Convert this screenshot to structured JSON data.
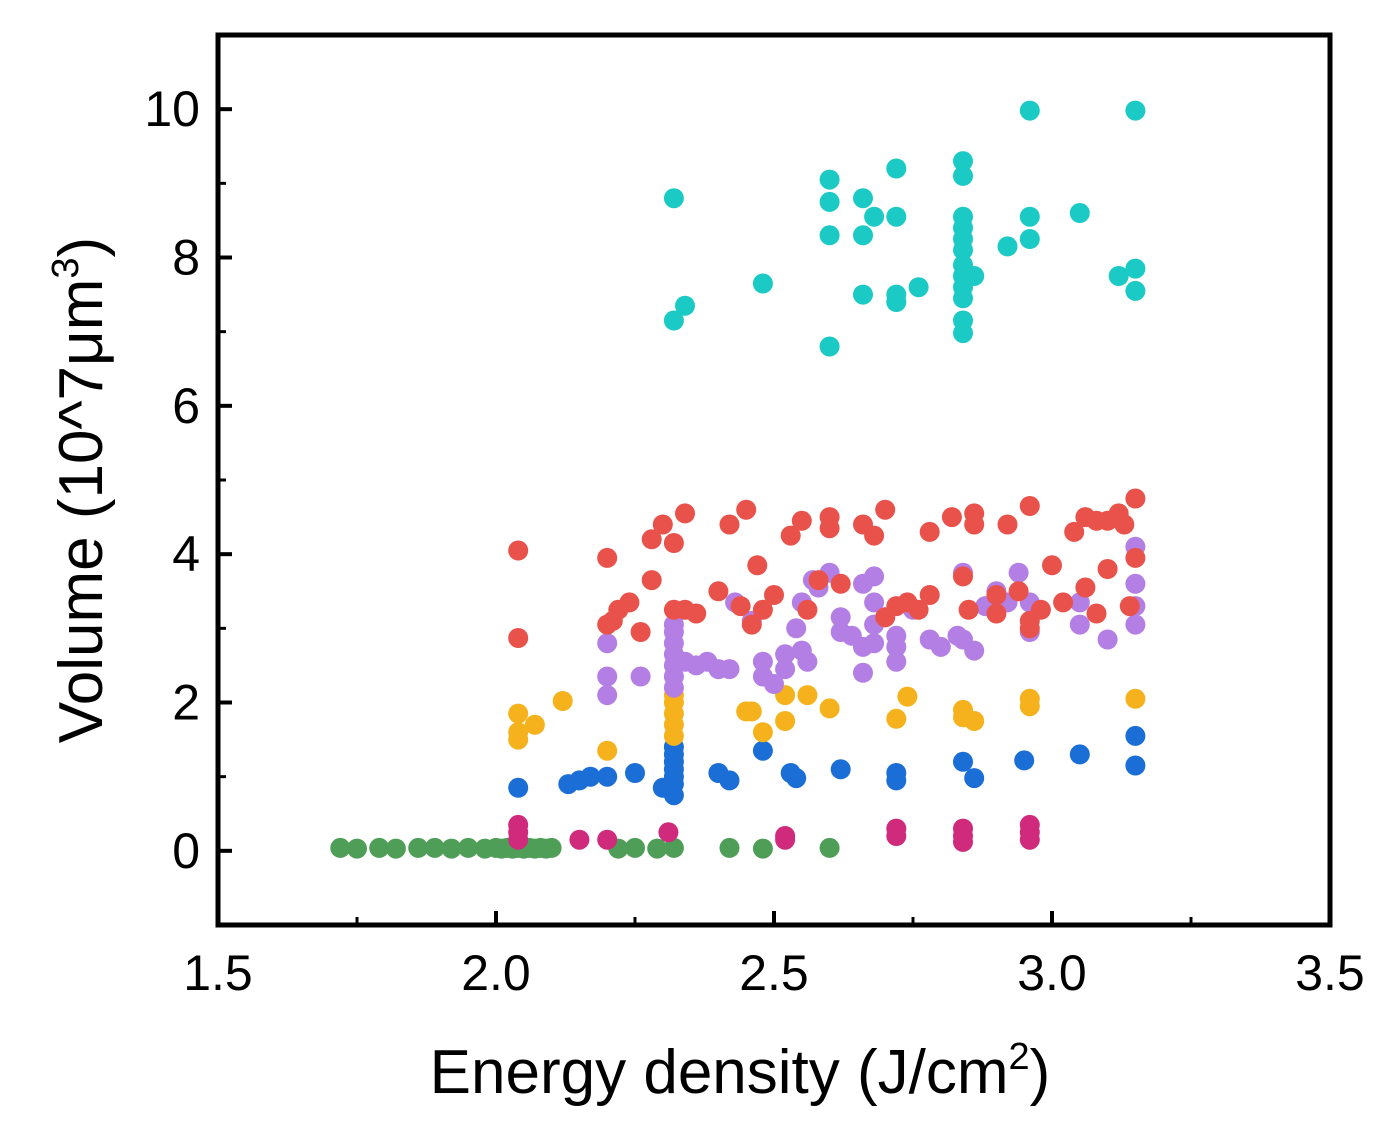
{
  "chart_data": {
    "type": "scatter",
    "title": "",
    "xlabel": {
      "main": "Energy density (J/cm",
      "sup": "2",
      "end": ")"
    },
    "ylabel": {
      "main": "Volume (10^7μm",
      "sup": "3",
      "end": ")"
    },
    "xlim": [
      1.5,
      3.5
    ],
    "ylim": [
      -1.0,
      11.0
    ],
    "xticks": [
      {
        "value": 1.5,
        "label": "1.5"
      },
      {
        "value": 2.0,
        "label": "2.0"
      },
      {
        "value": 2.5,
        "label": "2.5"
      },
      {
        "value": 3.0,
        "label": "3.0"
      },
      {
        "value": 3.5,
        "label": "3.5"
      }
    ],
    "yticks": [
      {
        "value": 0,
        "label": "0"
      },
      {
        "value": 2,
        "label": "2"
      },
      {
        "value": 4,
        "label": "4"
      },
      {
        "value": 6,
        "label": "6"
      },
      {
        "value": 8,
        "label": "8"
      },
      {
        "value": 10,
        "label": "10"
      }
    ],
    "grid": false,
    "series": [
      {
        "name": "green",
        "color": "#4e9e58",
        "points": [
          [
            1.72,
            0.04
          ],
          [
            1.75,
            0.03
          ],
          [
            1.79,
            0.04
          ],
          [
            1.82,
            0.03
          ],
          [
            1.86,
            0.04
          ],
          [
            1.89,
            0.04
          ],
          [
            1.92,
            0.03
          ],
          [
            1.95,
            0.04
          ],
          [
            1.98,
            0.03
          ],
          [
            2.0,
            0.04
          ],
          [
            2.01,
            0.03
          ],
          [
            2.02,
            0.04
          ],
          [
            2.03,
            0.03
          ],
          [
            2.04,
            0.04
          ],
          [
            2.05,
            0.03
          ],
          [
            2.06,
            0.04
          ],
          [
            2.07,
            0.03
          ],
          [
            2.08,
            0.04
          ],
          [
            2.09,
            0.03
          ],
          [
            2.1,
            0.04
          ],
          [
            2.22,
            0.03
          ],
          [
            2.25,
            0.04
          ],
          [
            2.29,
            0.03
          ],
          [
            2.32,
            0.04
          ],
          [
            2.42,
            0.04
          ],
          [
            2.48,
            0.03
          ],
          [
            2.6,
            0.04
          ]
        ]
      },
      {
        "name": "magenta",
        "color": "#cf2a7c",
        "points": [
          [
            2.04,
            0.35
          ],
          [
            2.04,
            0.25
          ],
          [
            2.04,
            0.15
          ],
          [
            2.15,
            0.15
          ],
          [
            2.2,
            0.15
          ],
          [
            2.31,
            0.25
          ],
          [
            2.52,
            0.2
          ],
          [
            2.52,
            0.15
          ],
          [
            2.72,
            0.3
          ],
          [
            2.72,
            0.2
          ],
          [
            2.84,
            0.3
          ],
          [
            2.84,
            0.2
          ],
          [
            2.84,
            0.12
          ],
          [
            2.96,
            0.35
          ],
          [
            2.96,
            0.25
          ],
          [
            2.96,
            0.15
          ]
        ]
      },
      {
        "name": "blue",
        "color": "#1a6ed6",
        "points": [
          [
            2.04,
            0.85
          ],
          [
            2.13,
            0.9
          ],
          [
            2.15,
            0.95
          ],
          [
            2.17,
            1.0
          ],
          [
            2.2,
            1.0
          ],
          [
            2.25,
            1.05
          ],
          [
            2.3,
            0.85
          ],
          [
            2.32,
            0.75
          ],
          [
            2.32,
            0.9
          ],
          [
            2.32,
            1.0
          ],
          [
            2.32,
            1.1
          ],
          [
            2.32,
            1.2
          ],
          [
            2.32,
            1.3
          ],
          [
            2.32,
            1.4
          ],
          [
            2.4,
            1.05
          ],
          [
            2.42,
            0.95
          ],
          [
            2.48,
            1.35
          ],
          [
            2.53,
            1.05
          ],
          [
            2.54,
            0.98
          ],
          [
            2.62,
            1.1
          ],
          [
            2.72,
            1.05
          ],
          [
            2.72,
            0.95
          ],
          [
            2.84,
            1.2
          ],
          [
            2.86,
            0.98
          ],
          [
            2.95,
            1.22
          ],
          [
            3.05,
            1.3
          ],
          [
            3.15,
            1.55
          ],
          [
            3.15,
            1.15
          ]
        ]
      },
      {
        "name": "orange",
        "color": "#f6b21c",
        "points": [
          [
            2.04,
            1.85
          ],
          [
            2.04,
            1.6
          ],
          [
            2.04,
            1.5
          ],
          [
            2.07,
            1.7
          ],
          [
            2.12,
            2.02
          ],
          [
            2.2,
            1.35
          ],
          [
            2.32,
            1.55
          ],
          [
            2.32,
            1.7
          ],
          [
            2.32,
            1.85
          ],
          [
            2.32,
            2.0
          ],
          [
            2.32,
            2.1
          ],
          [
            2.45,
            1.88
          ],
          [
            2.46,
            1.88
          ],
          [
            2.48,
            1.6
          ],
          [
            2.52,
            1.75
          ],
          [
            2.52,
            2.1
          ],
          [
            2.56,
            2.1
          ],
          [
            2.6,
            1.92
          ],
          [
            2.72,
            1.78
          ],
          [
            2.74,
            2.08
          ],
          [
            2.84,
            1.9
          ],
          [
            2.84,
            1.8
          ],
          [
            2.86,
            1.75
          ],
          [
            2.96,
            2.05
          ],
          [
            2.96,
            1.95
          ],
          [
            3.15,
            2.05
          ]
        ]
      },
      {
        "name": "purple",
        "color": "#b47fe4",
        "points": [
          [
            2.2,
            2.8
          ],
          [
            2.2,
            2.35
          ],
          [
            2.2,
            2.1
          ],
          [
            2.26,
            2.35
          ],
          [
            2.32,
            2.2
          ],
          [
            2.32,
            2.35
          ],
          [
            2.32,
            2.5
          ],
          [
            2.32,
            2.65
          ],
          [
            2.32,
            2.8
          ],
          [
            2.32,
            2.95
          ],
          [
            2.32,
            3.05
          ],
          [
            2.34,
            2.55
          ],
          [
            2.36,
            2.5
          ],
          [
            2.38,
            2.55
          ],
          [
            2.4,
            2.45
          ],
          [
            2.42,
            2.45
          ],
          [
            2.43,
            3.35
          ],
          [
            2.46,
            3.1
          ],
          [
            2.48,
            2.55
          ],
          [
            2.48,
            2.35
          ],
          [
            2.5,
            2.25
          ],
          [
            2.52,
            2.45
          ],
          [
            2.52,
            2.65
          ],
          [
            2.54,
            3.0
          ],
          [
            2.55,
            3.35
          ],
          [
            2.55,
            2.7
          ],
          [
            2.56,
            2.55
          ],
          [
            2.57,
            3.65
          ],
          [
            2.58,
            3.55
          ],
          [
            2.6,
            3.75
          ],
          [
            2.62,
            3.15
          ],
          [
            2.62,
            2.95
          ],
          [
            2.64,
            2.9
          ],
          [
            2.66,
            3.6
          ],
          [
            2.66,
            2.75
          ],
          [
            2.66,
            2.4
          ],
          [
            2.68,
            3.7
          ],
          [
            2.68,
            3.35
          ],
          [
            2.68,
            3.05
          ],
          [
            2.68,
            2.8
          ],
          [
            2.7,
            3.15
          ],
          [
            2.72,
            2.9
          ],
          [
            2.72,
            2.75
          ],
          [
            2.72,
            2.55
          ],
          [
            2.75,
            3.25
          ],
          [
            2.78,
            2.85
          ],
          [
            2.8,
            2.75
          ],
          [
            2.83,
            2.9
          ],
          [
            2.84,
            3.75
          ],
          [
            2.84,
            2.85
          ],
          [
            2.86,
            2.7
          ],
          [
            2.88,
            3.3
          ],
          [
            2.9,
            3.5
          ],
          [
            2.92,
            3.35
          ],
          [
            2.94,
            3.75
          ],
          [
            2.96,
            3.35
          ],
          [
            2.96,
            2.95
          ],
          [
            3.05,
            3.35
          ],
          [
            3.05,
            3.05
          ],
          [
            3.1,
            2.85
          ],
          [
            3.15,
            4.1
          ],
          [
            3.15,
            3.6
          ],
          [
            3.15,
            3.3
          ],
          [
            3.15,
            3.05
          ]
        ]
      },
      {
        "name": "red",
        "color": "#e9524a",
        "points": [
          [
            2.04,
            4.05
          ],
          [
            2.04,
            2.87
          ],
          [
            2.2,
            3.95
          ],
          [
            2.2,
            3.05
          ],
          [
            2.21,
            3.1
          ],
          [
            2.22,
            3.25
          ],
          [
            2.24,
            3.35
          ],
          [
            2.26,
            2.95
          ],
          [
            2.28,
            3.65
          ],
          [
            2.28,
            4.2
          ],
          [
            2.3,
            4.4
          ],
          [
            2.32,
            4.15
          ],
          [
            2.32,
            3.25
          ],
          [
            2.34,
            4.55
          ],
          [
            2.34,
            3.25
          ],
          [
            2.36,
            3.2
          ],
          [
            2.4,
            3.5
          ],
          [
            2.42,
            4.4
          ],
          [
            2.44,
            3.3
          ],
          [
            2.45,
            4.6
          ],
          [
            2.46,
            3.05
          ],
          [
            2.47,
            3.85
          ],
          [
            2.48,
            3.25
          ],
          [
            2.5,
            3.45
          ],
          [
            2.53,
            4.25
          ],
          [
            2.55,
            4.45
          ],
          [
            2.56,
            3.25
          ],
          [
            2.58,
            3.65
          ],
          [
            2.6,
            4.5
          ],
          [
            2.6,
            4.35
          ],
          [
            2.62,
            3.6
          ],
          [
            2.66,
            4.4
          ],
          [
            2.68,
            4.25
          ],
          [
            2.7,
            4.6
          ],
          [
            2.7,
            3.15
          ],
          [
            2.72,
            3.3
          ],
          [
            2.74,
            3.35
          ],
          [
            2.76,
            3.25
          ],
          [
            2.78,
            3.45
          ],
          [
            2.78,
            4.3
          ],
          [
            2.82,
            4.5
          ],
          [
            2.84,
            3.7
          ],
          [
            2.85,
            3.25
          ],
          [
            2.86,
            4.55
          ],
          [
            2.86,
            4.4
          ],
          [
            2.9,
            3.45
          ],
          [
            2.9,
            3.2
          ],
          [
            2.92,
            4.4
          ],
          [
            2.94,
            3.5
          ],
          [
            2.96,
            4.65
          ],
          [
            2.96,
            3.1
          ],
          [
            2.96,
            3.0
          ],
          [
            2.98,
            3.25
          ],
          [
            3.0,
            3.85
          ],
          [
            3.02,
            3.35
          ],
          [
            3.04,
            4.3
          ],
          [
            3.06,
            4.5
          ],
          [
            3.06,
            3.55
          ],
          [
            3.08,
            3.2
          ],
          [
            3.08,
            4.45
          ],
          [
            3.1,
            4.45
          ],
          [
            3.1,
            3.8
          ],
          [
            3.12,
            4.55
          ],
          [
            3.13,
            4.4
          ],
          [
            3.14,
            3.3
          ],
          [
            3.15,
            4.75
          ],
          [
            3.15,
            3.95
          ]
        ]
      },
      {
        "name": "cyan",
        "color": "#1bcac5",
        "points": [
          [
            2.32,
            8.8
          ],
          [
            2.32,
            7.15
          ],
          [
            2.34,
            7.35
          ],
          [
            2.48,
            7.65
          ],
          [
            2.6,
            9.05
          ],
          [
            2.6,
            8.75
          ],
          [
            2.6,
            8.3
          ],
          [
            2.6,
            6.8
          ],
          [
            2.66,
            8.8
          ],
          [
            2.66,
            8.3
          ],
          [
            2.66,
            7.5
          ],
          [
            2.68,
            8.55
          ],
          [
            2.72,
            9.2
          ],
          [
            2.72,
            8.55
          ],
          [
            2.72,
            7.5
          ],
          [
            2.72,
            7.4
          ],
          [
            2.76,
            7.6
          ],
          [
            2.84,
            9.3
          ],
          [
            2.84,
            9.1
          ],
          [
            2.84,
            8.55
          ],
          [
            2.84,
            8.4
          ],
          [
            2.84,
            8.25
          ],
          [
            2.84,
            8.1
          ],
          [
            2.84,
            7.9
          ],
          [
            2.84,
            7.75
          ],
          [
            2.84,
            7.6
          ],
          [
            2.84,
            7.45
          ],
          [
            2.84,
            7.15
          ],
          [
            2.84,
            6.98
          ],
          [
            2.86,
            7.75
          ],
          [
            2.92,
            8.15
          ],
          [
            2.96,
            9.98
          ],
          [
            2.96,
            8.55
          ],
          [
            2.96,
            8.25
          ],
          [
            3.05,
            8.6
          ],
          [
            3.12,
            7.75
          ],
          [
            3.15,
            9.98
          ],
          [
            3.15,
            7.85
          ],
          [
            3.15,
            7.55
          ]
        ]
      }
    ]
  }
}
